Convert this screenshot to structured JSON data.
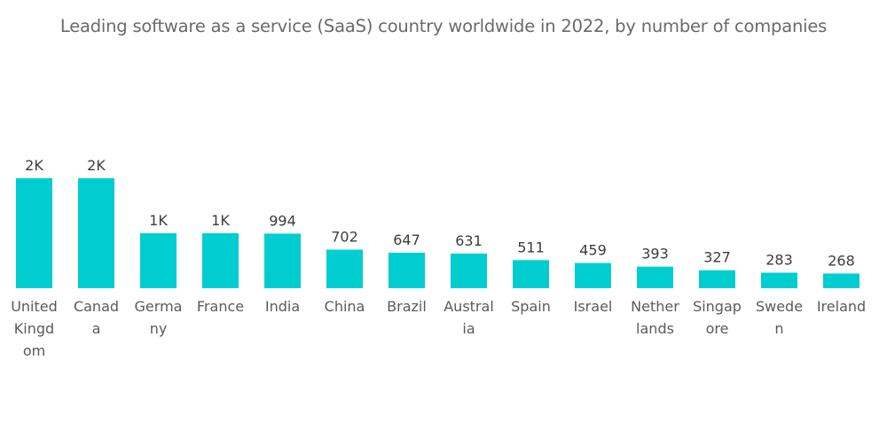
{
  "chart_data": {
    "type": "bar",
    "title": "Leading software as a service (SaaS) country worldwide in 2022, by number of companies",
    "xlabel": "",
    "ylabel": "",
    "grid": false,
    "legend": "none",
    "bar_color": "#00CDD0",
    "categories": [
      "United Kingdom",
      "Canada",
      "Germany",
      "France",
      "India",
      "China",
      "Brazil",
      "Australia",
      "Spain",
      "Israel",
      "Netherlands",
      "Singapore",
      "Sweden",
      "Ireland"
    ],
    "category_label_lines": [
      [
        "United",
        "Kingd",
        "om"
      ],
      [
        "Canad",
        "a"
      ],
      [
        "Germa",
        "ny"
      ],
      [
        "France"
      ],
      [
        "India"
      ],
      [
        "China"
      ],
      [
        "Brazil"
      ],
      [
        "Austral",
        "ia"
      ],
      [
        "Spain"
      ],
      [
        "Israel"
      ],
      [
        "Nether",
        "lands"
      ],
      [
        "Singap",
        "ore"
      ],
      [
        "Swede",
        "n"
      ],
      [
        "Ireland"
      ]
    ],
    "values": [
      2000,
      2000,
      1000,
      1000,
      994,
      702,
      647,
      631,
      511,
      459,
      393,
      327,
      283,
      268
    ],
    "data_labels": [
      "2K",
      "2K",
      "1K",
      "1K",
      "994",
      "702",
      "647",
      "631",
      "511",
      "459",
      "393",
      "327",
      "283",
      "268"
    ],
    "ylim": [
      0,
      2000
    ]
  }
}
